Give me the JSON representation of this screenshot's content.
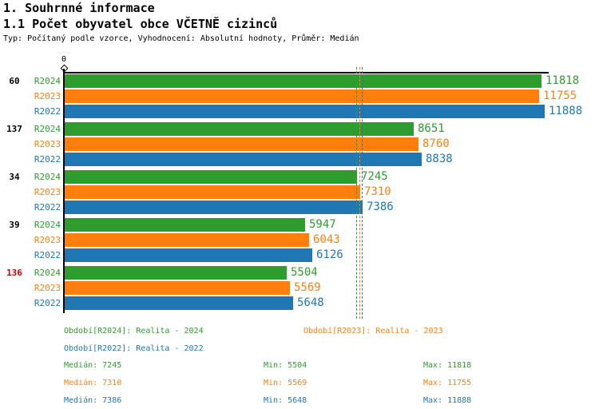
{
  "header": {
    "title": "1. Souhrnné informace",
    "subtitle": "1.1 Počet obyvatel obce VČETNĚ cizinců",
    "meta": "Typ: Počítaný podle vzorce, Vyhodnocení: Absolutní hodnoty, Průměr: Medián"
  },
  "axis": {
    "origin_label": "0"
  },
  "chart_data": {
    "type": "bar",
    "orientation": "horizontal",
    "xlim": [
      0,
      12000
    ],
    "grid": false,
    "legend_position": "bottom",
    "groups": [
      {
        "label": "60",
        "label_color": "#000000",
        "values": [
          11818,
          11755,
          11888
        ]
      },
      {
        "label": "137",
        "label_color": "#000000",
        "values": [
          8651,
          8760,
          8838
        ]
      },
      {
        "label": "34",
        "label_color": "#000000",
        "values": [
          7245,
          7310,
          7386
        ]
      },
      {
        "label": "39",
        "label_color": "#000000",
        "values": [
          5947,
          6043,
          6126
        ]
      },
      {
        "label": "136",
        "label_color": "#cc0000",
        "values": [
          5504,
          5569,
          5648
        ]
      }
    ],
    "series": [
      {
        "name": "R2024",
        "color": "#2e9c2e",
        "legend": "Období[R2024]: Realita - 2024",
        "median": 7245,
        "min": 5504,
        "max": 11818
      },
      {
        "name": "R2023",
        "color": "#ff7f0e",
        "legend": "Období[R2023]: Realita - 2023",
        "median": 7310,
        "min": 5569,
        "max": 11755
      },
      {
        "name": "R2022",
        "color": "#1f77b4",
        "legend": "Období[R2022]: Realita - 2022",
        "median": 7386,
        "min": 5648,
        "max": 11888
      }
    ],
    "median_lines": [
      7245,
      7310,
      7386
    ]
  },
  "stats_labels": {
    "median": "Medián",
    "min": "Min",
    "max": "Max"
  }
}
